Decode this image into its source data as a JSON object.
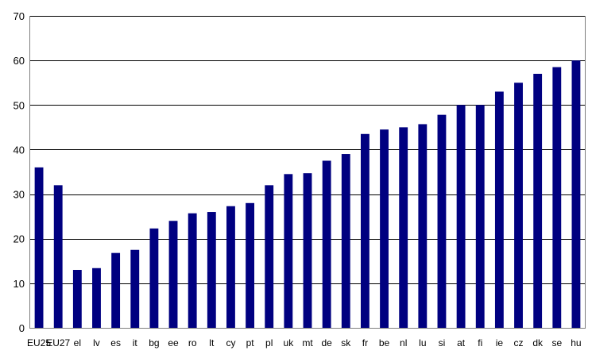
{
  "chart_data": {
    "type": "bar",
    "categories": [
      "EU25",
      "EU27",
      "el",
      "lv",
      "es",
      "it",
      "bg",
      "ee",
      "ro",
      "lt",
      "cy",
      "pt",
      "pl",
      "uk",
      "mt",
      "de",
      "sk",
      "fr",
      "be",
      "nl",
      "lu",
      "si",
      "at",
      "fi",
      "ie",
      "cz",
      "dk",
      "se",
      "hu"
    ],
    "values": [
      36,
      32,
      13,
      13.4,
      16.8,
      17.5,
      22.3,
      24,
      25.7,
      26,
      27.3,
      28,
      32,
      34.5,
      34.7,
      37.5,
      39,
      43.5,
      44.5,
      45,
      45.7,
      47.8,
      50,
      50,
      53,
      55,
      57,
      58.5,
      60
    ],
    "ylim": [
      0,
      70
    ],
    "yticks": [
      0,
      10,
      20,
      30,
      40,
      50,
      60,
      70
    ],
    "title": "",
    "xlabel": "",
    "ylabel": "",
    "grid": true,
    "bar_color": "#000080"
  }
}
